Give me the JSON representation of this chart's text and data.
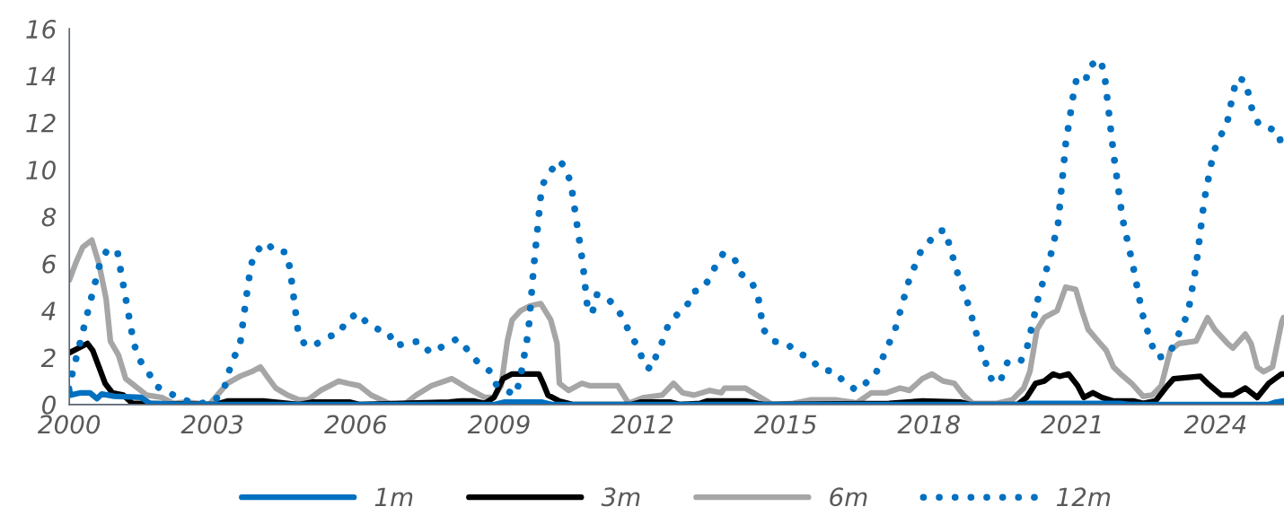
{
  "chart_data": {
    "type": "line",
    "xlim": [
      2000,
      2025.43
    ],
    "ylim": [
      0,
      16
    ],
    "xticks": [
      2000,
      2003,
      2006,
      2009,
      2012,
      2015,
      2018,
      2021,
      2024
    ],
    "yticks": [
      0,
      2,
      4,
      6,
      8,
      10,
      12,
      14,
      16
    ],
    "legend": "bottom",
    "marker": "none",
    "series": [
      {
        "name": "1m",
        "color": "#0070c0",
        "line_style": "solid",
        "x": [
          2000.0,
          2000.02,
          2000.24,
          2000.43,
          2000.58,
          2000.68,
          2000.94,
          2001.5,
          2001.69,
          2002.5,
          2008.9,
          2009.1,
          2009.9,
          2010.1,
          2020.0,
          2020.1,
          2022.0,
          2022.2,
          2025.1,
          2025.25,
          2025.42
        ],
        "values": [
          0.7,
          0.4,
          0.5,
          0.5,
          0.25,
          0.45,
          0.35,
          0.3,
          0.05,
          0,
          0,
          0.1,
          0.1,
          0,
          0,
          0.05,
          0.05,
          0,
          0,
          0.1,
          0.15
        ]
      },
      {
        "name": "3m",
        "color": "#000000",
        "line_style": "solid",
        "x": [
          2000.0,
          2000.19,
          2000.38,
          2000.49,
          2000.62,
          2000.75,
          2000.9,
          2001.13,
          2001.32,
          2001.5,
          2003.06,
          2003.31,
          2004.06,
          2004.81,
          2005.08,
          2005.88,
          2006.07,
          2007.95,
          2008.2,
          2008.46,
          2008.7,
          2008.89,
          2009.08,
          2009.27,
          2009.83,
          2009.92,
          2010.02,
          2010.26,
          2010.53,
          2011.77,
          2011.95,
          2012.59,
          2012.78,
          2013.21,
          2013.35,
          2014.15,
          2014.53,
          2017.16,
          2017.86,
          2018.67,
          2018.85,
          2019.85,
          2020.04,
          2020.23,
          2020.41,
          2020.6,
          2020.73,
          2020.92,
          2021.11,
          2021.24,
          2021.43,
          2021.62,
          2021.86,
          2022.29,
          2022.48,
          2022.74,
          2022.99,
          2023.12,
          2023.68,
          2023.83,
          2024.12,
          2024.36,
          2024.62,
          2024.87,
          2025.11,
          2025.38,
          2025.42
        ],
        "values": [
          2.2,
          2.4,
          2.6,
          2.3,
          1.6,
          0.9,
          0.5,
          0.4,
          0.05,
          0.05,
          0,
          0.15,
          0.15,
          0,
          0.1,
          0.1,
          0,
          0.1,
          0.15,
          0.15,
          0.05,
          0.3,
          1.1,
          1.3,
          1.3,
          0.9,
          0.4,
          0.15,
          0,
          0,
          0.1,
          0.1,
          0,
          0.05,
          0.15,
          0.15,
          0,
          0.05,
          0.15,
          0.1,
          0,
          0,
          0.3,
          0.9,
          1.0,
          1.3,
          1.2,
          1.3,
          0.8,
          0.3,
          0.5,
          0.3,
          0.15,
          0.15,
          0.05,
          0.15,
          0.8,
          1.1,
          1.2,
          0.9,
          0.4,
          0.4,
          0.7,
          0.3,
          0.9,
          1.3,
          1.3
        ]
      },
      {
        "name": "6m",
        "color": "#a6a6a6",
        "line_style": "solid",
        "x": [
          2000.0,
          2000.15,
          2000.28,
          2000.47,
          2000.62,
          2000.77,
          2000.86,
          2001.03,
          2001.18,
          2001.37,
          2001.62,
          2001.94,
          2002.18,
          2002.44,
          2002.93,
          2003.31,
          2003.57,
          2003.82,
          2004.0,
          2004.14,
          2004.32,
          2004.57,
          2004.81,
          2005.0,
          2005.26,
          2005.64,
          2005.83,
          2006.07,
          2006.32,
          2006.69,
          2007.01,
          2007.26,
          2007.58,
          2008.01,
          2008.33,
          2008.7,
          2008.89,
          2009.04,
          2009.17,
          2009.27,
          2009.45,
          2009.64,
          2009.87,
          2010.08,
          2010.21,
          2010.26,
          2010.45,
          2010.73,
          2010.9,
          2011.48,
          2011.71,
          2012.03,
          2012.41,
          2012.65,
          2012.84,
          2013.08,
          2013.4,
          2013.65,
          2013.72,
          2014.15,
          2014.47,
          2014.72,
          2015.15,
          2015.53,
          2016.03,
          2016.41,
          2016.47,
          2016.79,
          2017.11,
          2017.39,
          2017.59,
          2017.86,
          2018.06,
          2018.29,
          2018.53,
          2018.72,
          2018.91,
          2019.42,
          2019.74,
          2019.98,
          2020.11,
          2020.26,
          2020.41,
          2020.68,
          2020.86,
          2021.07,
          2021.2,
          2021.33,
          2021.54,
          2021.71,
          2021.86,
          2022.01,
          2022.24,
          2022.48,
          2022.67,
          2022.86,
          2023.05,
          2023.23,
          2023.59,
          2023.83,
          2023.98,
          2024.25,
          2024.36,
          2024.62,
          2024.74,
          2024.87,
          2025.0,
          2025.19,
          2025.38,
          2025.42
        ],
        "values": [
          5.3,
          6.1,
          6.7,
          7.0,
          6.0,
          4.5,
          2.7,
          2.1,
          1.1,
          0.8,
          0.4,
          0.3,
          0.05,
          0.1,
          0,
          0.9,
          1.2,
          1.4,
          1.6,
          1.2,
          0.7,
          0.4,
          0.2,
          0.2,
          0.6,
          1.0,
          0.9,
          0.8,
          0.4,
          0.05,
          0,
          0.4,
          0.8,
          1.1,
          0.7,
          0.3,
          0.3,
          0.8,
          2.7,
          3.6,
          4.0,
          4.2,
          4.3,
          3.6,
          2.6,
          0.9,
          0.6,
          0.9,
          0.8,
          0.8,
          0.05,
          0.3,
          0.4,
          0.9,
          0.5,
          0.4,
          0.6,
          0.5,
          0.7,
          0.7,
          0.3,
          0,
          0.05,
          0.2,
          0.2,
          0.1,
          0.05,
          0.5,
          0.5,
          0.7,
          0.6,
          1.1,
          1.3,
          1.0,
          0.9,
          0.4,
          0.05,
          0.05,
          0.2,
          0.7,
          1.4,
          3.2,
          3.7,
          4.0,
          5.0,
          4.9,
          4.0,
          3.2,
          2.7,
          2.3,
          1.6,
          1.3,
          0.9,
          0.35,
          0.4,
          0.8,
          2.3,
          2.6,
          2.7,
          3.7,
          3.2,
          2.6,
          2.4,
          3.0,
          2.6,
          1.6,
          1.4,
          1.6,
          3.5,
          3.7
        ]
      },
      {
        "name": "12m",
        "color": "#0070c0",
        "line_style": "dotted",
        "x": [
          2000.06,
          2000.64,
          2000.77,
          2001.0,
          2001.05,
          2001.35,
          2001.47,
          2001.65,
          2001.8,
          2002.09,
          2002.37,
          2002.71,
          2003.01,
          2003.23,
          2003.31,
          2003.42,
          2003.57,
          2003.7,
          2003.8,
          2003.89,
          2004.14,
          2004.3,
          2004.53,
          2004.62,
          2004.79,
          2004.94,
          2005.19,
          2005.43,
          2005.64,
          2005.81,
          2006.05,
          2006.26,
          2006.47,
          2006.67,
          2006.82,
          2007.03,
          2007.33,
          2007.56,
          2007.84,
          2008.12,
          2008.35,
          2008.55,
          2008.82,
          2008.95,
          2009.34,
          2009.44,
          2009.61,
          2009.72,
          2009.89,
          2010.06,
          2010.26,
          2010.41,
          2010.51,
          2010.75,
          2010.86,
          2010.96,
          2011.05,
          2011.28,
          2011.5,
          2011.65,
          2011.79,
          2011.94,
          2012.01,
          2012.18,
          2012.29,
          2012.42,
          2012.54,
          2012.71,
          2012.93,
          2013.05,
          2013.25,
          2013.38,
          2013.53,
          2013.68,
          2013.91,
          2014.04,
          2014.29,
          2014.42,
          2014.53,
          2014.72,
          2015.02,
          2015.24,
          2015.51,
          2015.71,
          2016.03,
          2016.2,
          2016.48,
          2016.67,
          2016.9,
          2017.03,
          2017.29,
          2017.58,
          2017.82,
          2018.03,
          2018.21,
          2018.35,
          2018.42,
          2018.61,
          2018.83,
          2019.02,
          2019.23,
          2019.34,
          2019.51,
          2019.64,
          2019.91,
          2020.06,
          2020.28,
          2020.55,
          2020.7,
          2020.86,
          2021.02,
          2021.09,
          2021.28,
          2021.35,
          2021.58,
          2021.67,
          2021.86,
          2022.05,
          2022.27,
          2022.46,
          2022.65,
          2022.78,
          2023.01,
          2023.16,
          2023.42,
          2023.59,
          2023.76,
          2023.95,
          2024.06,
          2024.23,
          2024.36,
          2024.44,
          2024.62,
          2024.77,
          2024.91,
          2025.09,
          2025.32,
          2025.38
        ],
        "values": [
          1.3,
          6.0,
          6.5,
          6.6,
          6.0,
          2.6,
          1.9,
          1.4,
          0.8,
          0.5,
          0.2,
          0.05,
          0.1,
          0.6,
          1.2,
          1.9,
          2.5,
          4.5,
          5.9,
          6.5,
          6.9,
          6.5,
          6.5,
          5.8,
          3.1,
          2.5,
          2.6,
          2.9,
          3.0,
          3.6,
          3.9,
          3.4,
          3.2,
          3.1,
          2.5,
          2.6,
          2.7,
          2.2,
          2.5,
          2.8,
          2.3,
          1.8,
          1.4,
          0.8,
          0.4,
          1.1,
          3.1,
          5.8,
          9.3,
          9.9,
          10.4,
          10.0,
          9.3,
          6.0,
          3.9,
          4.0,
          4.7,
          4.5,
          4.0,
          3.4,
          2.8,
          2.4,
          1.7,
          1.5,
          2.1,
          2.7,
          3.4,
          3.8,
          4.2,
          4.8,
          4.9,
          5.3,
          5.9,
          6.4,
          6.3,
          5.6,
          5.2,
          4.6,
          3.2,
          2.7,
          2.6,
          2.2,
          2.0,
          1.5,
          1.4,
          1.0,
          0.6,
          0.9,
          1.4,
          2.0,
          3.2,
          5.3,
          6.5,
          7.0,
          7.4,
          7.4,
          6.8,
          5.5,
          4.2,
          2.8,
          1.5,
          0.9,
          1.1,
          1.8,
          1.8,
          2.5,
          4.5,
          6.4,
          7.7,
          11.1,
          13.2,
          13.9,
          13.8,
          14.4,
          14.7,
          14.1,
          10.7,
          7.9,
          5.9,
          3.9,
          2.6,
          2.0,
          2.1,
          2.7,
          3.9,
          5.9,
          8.7,
          10.7,
          11.3,
          11.9,
          13.2,
          13.9,
          13.8,
          12.5,
          11.9,
          11.8,
          11.6,
          10.9
        ]
      }
    ]
  }
}
